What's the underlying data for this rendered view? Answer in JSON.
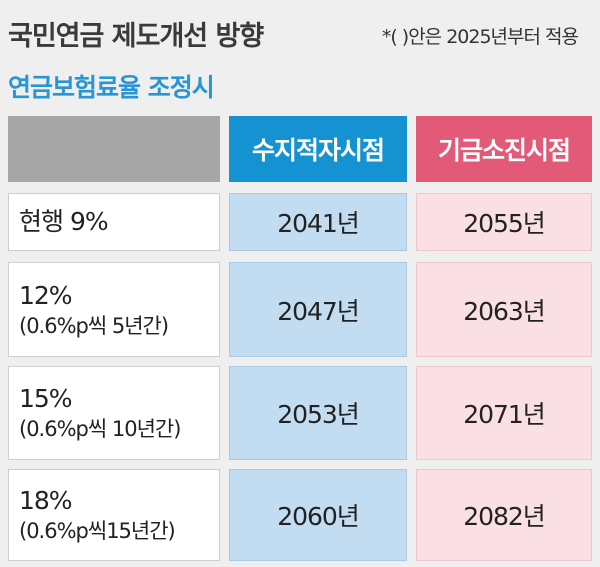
{
  "title": "국민연금 제도개선 방향",
  "note": "*( )안은 2025년부터 적용",
  "subtitle": "연금보험료율 조정시",
  "colors": {
    "deficit_header": "#1592d2",
    "exhaustion_header": "#e35a78",
    "subtitle": "#2a95d3"
  },
  "chart_data": {
    "type": "table",
    "columns": [
      "",
      "수지적자시점",
      "기금소진시점"
    ],
    "rows": [
      {
        "label": "현행 9%",
        "sublabel": "",
        "deficit": "2041년",
        "exhaustion": "2055년"
      },
      {
        "label": "12%",
        "sublabel": "(0.6%p씩 5년간)",
        "deficit": "2047년",
        "exhaustion": "2063년"
      },
      {
        "label": "15%",
        "sublabel": "(0.6%p씩 10년간)",
        "deficit": "2053년",
        "exhaustion": "2071년"
      },
      {
        "label": "18%",
        "sublabel": "(0.6%p씩15년간)",
        "deficit": "2060년",
        "exhaustion": "2082년"
      }
    ]
  }
}
